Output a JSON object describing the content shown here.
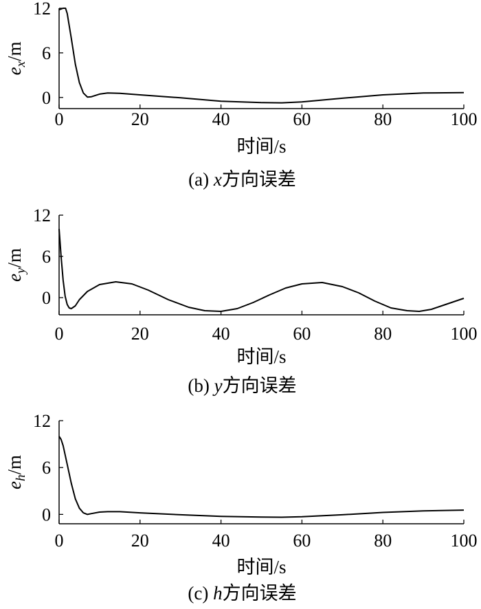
{
  "chart_data": [
    {
      "type": "line",
      "caption": {
        "prefix": "(a) ",
        "var": "x",
        "suffix": "方向误差"
      },
      "ylabel": {
        "base": "e",
        "sub": "x",
        "unit": "/m"
      },
      "xlabel": "时间/s",
      "xlim": [
        0,
        100
      ],
      "ylim": [
        -1.5,
        12
      ],
      "xticks": [
        "0",
        "20",
        "40",
        "60",
        "80",
        "100"
      ],
      "yticks": [
        "0",
        "6",
        "12"
      ],
      "series": [
        {
          "x": [
            0,
            1,
            1.6,
            2,
            3,
            4,
            5,
            6,
            7,
            8,
            10,
            12,
            15,
            20,
            30,
            40,
            50,
            55,
            60,
            70,
            80,
            90,
            100
          ],
          "y": [
            11.8,
            12,
            12,
            11.3,
            8.0,
            4.5,
            2.0,
            0.6,
            0.05,
            0.1,
            0.45,
            0.6,
            0.55,
            0.35,
            -0.05,
            -0.5,
            -0.7,
            -0.72,
            -0.6,
            -0.1,
            0.35,
            0.6,
            0.65
          ]
        }
      ]
    },
    {
      "type": "line",
      "caption": {
        "prefix": "(b) ",
        "var": "y",
        "suffix": "方向误差"
      },
      "ylabel": {
        "base": "e",
        "sub": "y",
        "unit": "/m"
      },
      "xlabel": "时间/s",
      "xlim": [
        0,
        100
      ],
      "ylim": [
        -2.5,
        12
      ],
      "xticks": [
        "0",
        "20",
        "40",
        "60",
        "80",
        "100"
      ],
      "yticks": [
        "0",
        "6",
        "12"
      ],
      "series": [
        {
          "x": [
            0,
            0.5,
            1,
            1.5,
            2,
            2.5,
            3,
            4,
            5,
            7,
            10,
            14,
            18,
            22,
            27,
            32,
            36,
            40,
            44,
            48,
            52,
            56,
            60,
            65,
            70,
            74,
            78,
            82,
            86,
            89,
            92,
            95,
            98,
            100
          ],
          "y": [
            10.0,
            6.0,
            2.5,
            0.2,
            -1.0,
            -1.5,
            -1.6,
            -1.2,
            -0.3,
            0.9,
            1.9,
            2.3,
            2.0,
            1.1,
            -0.3,
            -1.4,
            -1.9,
            -2.0,
            -1.6,
            -0.7,
            0.4,
            1.4,
            2.0,
            2.2,
            1.6,
            0.7,
            -0.5,
            -1.5,
            -1.9,
            -2.0,
            -1.7,
            -1.1,
            -0.5,
            -0.1
          ]
        }
      ]
    },
    {
      "type": "line",
      "caption": {
        "prefix": "(c) ",
        "var": "h",
        "suffix": "方向误差"
      },
      "ylabel": {
        "base": "e",
        "sub": "h",
        "unit": "/m"
      },
      "xlabel": "时间/s",
      "xlim": [
        0,
        100
      ],
      "ylim": [
        -1.2,
        12
      ],
      "xticks": [
        "0",
        "20",
        "40",
        "60",
        "80",
        "100"
      ],
      "yticks": [
        "0",
        "6",
        "12"
      ],
      "series": [
        {
          "x": [
            0,
            0.5,
            1,
            2,
            3,
            4,
            5,
            6,
            7,
            8,
            10,
            12,
            15,
            20,
            30,
            40,
            50,
            55,
            60,
            70,
            80,
            90,
            100
          ],
          "y": [
            10.0,
            9.6,
            8.8,
            6.4,
            4.0,
            2.0,
            0.8,
            0.2,
            0.0,
            0.1,
            0.3,
            0.35,
            0.35,
            0.2,
            -0.05,
            -0.25,
            -0.35,
            -0.36,
            -0.3,
            -0.05,
            0.25,
            0.45,
            0.55
          ]
        }
      ]
    }
  ]
}
